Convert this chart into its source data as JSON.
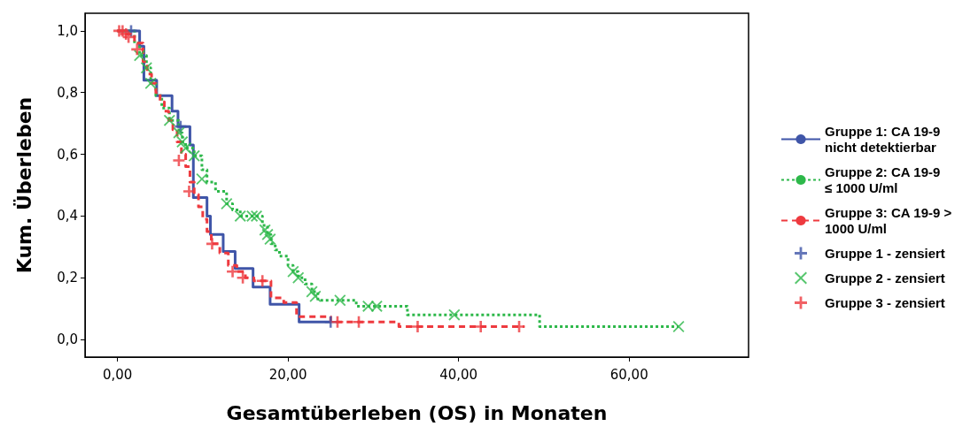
{
  "chart_data": {
    "type": "step",
    "xlabel": "Gesamtüberleben (OS) in Monaten",
    "ylabel": "Kum. Überleben",
    "xlim": [
      -3.8,
      74
    ],
    "ylim": [
      -0.057,
      1.057
    ],
    "xticks": [
      {
        "value": 0,
        "label": "0,00"
      },
      {
        "value": 20,
        "label": "20,00"
      },
      {
        "value": 40,
        "label": "40,00"
      },
      {
        "value": 60,
        "label": "60,00"
      }
    ],
    "yticks": [
      {
        "value": 0,
        "label": "0,0"
      },
      {
        "value": 0.2,
        "label": "0,2"
      },
      {
        "value": 0.4,
        "label": "0,4"
      },
      {
        "value": 0.6,
        "label": "0,6"
      },
      {
        "value": 0.8,
        "label": "0,8"
      },
      {
        "value": 1,
        "label": "1,0"
      }
    ],
    "grid": false,
    "legend": "right",
    "series": [
      {
        "name": "Gruppe 1: CA 19-9 nicht detektierbar",
        "line_style": "solid",
        "color": "#3f55a8",
        "x": [
          0,
          2.6,
          3.1,
          4.6,
          6.4,
          7.1,
          8.5,
          8.9,
          10.5,
          10.9,
          12.4,
          13.8,
          15.9,
          17.9,
          21.3,
          25
        ],
        "values": [
          1,
          0.95,
          0.84,
          0.79,
          0.74,
          0.69,
          0.63,
          0.46,
          0.4,
          0.34,
          0.285,
          0.23,
          0.17,
          0.114,
          0.057,
          0.057
        ]
      },
      {
        "name": "Gruppe 2: CA 19-9 ≤ 1000 U/ml",
        "line_style": "dotted",
        "color": "#2db84a",
        "x": [
          0,
          2,
          2.6,
          3.4,
          3.9,
          4.5,
          5.2,
          6.1,
          7.2,
          7.6,
          8,
          9,
          9.9,
          10.5,
          11.5,
          12.8,
          13.5,
          14.4,
          17,
          17.6,
          18,
          18.5,
          19,
          20,
          20.6,
          21.2,
          22,
          22.8,
          23.5,
          28,
          34,
          49.5,
          65.8
        ],
        "values": [
          1,
          0.96,
          0.92,
          0.88,
          0.83,
          0.79,
          0.75,
          0.71,
          0.67,
          0.64,
          0.62,
          0.595,
          0.55,
          0.51,
          0.48,
          0.44,
          0.42,
          0.4,
          0.37,
          0.34,
          0.31,
          0.29,
          0.27,
          0.24,
          0.22,
          0.2,
          0.18,
          0.155,
          0.127,
          0.108,
          0.08,
          0.042,
          0.042
        ]
      },
      {
        "name": "Gruppe 3: CA 19-9 > 1000 U/ml",
        "line_style": "dashed",
        "color": "#ee3a3f",
        "x": [
          0,
          1,
          2,
          3,
          3.5,
          4,
          4.5,
          5,
          5.5,
          6,
          6.5,
          7,
          7.5,
          8,
          8.5,
          9,
          9.5,
          10,
          10.5,
          11,
          12,
          13,
          14,
          15,
          16,
          18,
          19.5,
          21,
          25,
          33,
          47.7
        ],
        "values": [
          1,
          0.99,
          0.96,
          0.9,
          0.86,
          0.83,
          0.8,
          0.77,
          0.74,
          0.71,
          0.68,
          0.64,
          0.6,
          0.56,
          0.51,
          0.47,
          0.43,
          0.39,
          0.35,
          0.31,
          0.28,
          0.24,
          0.22,
          0.2,
          0.19,
          0.135,
          0.12,
          0.074,
          0.057,
          0.042,
          0.042
        ]
      },
      {
        "name": "Gruppe 1 - zensiert",
        "type": "scatter",
        "marker": "cross",
        "color": "#3f55a8",
        "x": [
          1.6,
          7.4,
          25
        ],
        "values": [
          1,
          0.69,
          0.057
        ]
      },
      {
        "name": "Gruppe 2 - zensiert",
        "type": "scatter",
        "marker": "x",
        "color": "#2db84a",
        "x": [
          2.6,
          3.4,
          3.9,
          6.1,
          7.2,
          7.6,
          8,
          9,
          9.9,
          12.8,
          14.4,
          15.8,
          16.3,
          17.3,
          17.6,
          17.9,
          20.6,
          21.2,
          22.8,
          23.2,
          26.1,
          29.4,
          30.4,
          39.5,
          65.8
        ],
        "values": [
          0.92,
          0.88,
          0.83,
          0.71,
          0.67,
          0.64,
          0.62,
          0.595,
          0.52,
          0.44,
          0.4,
          0.4,
          0.4,
          0.355,
          0.34,
          0.325,
          0.22,
          0.2,
          0.155,
          0.14,
          0.127,
          0.108,
          0.108,
          0.08,
          0.042
        ]
      },
      {
        "name": "Gruppe 3 - zensiert",
        "type": "scatter",
        "marker": "cross",
        "color": "#ee3a3f",
        "x": [
          0.2,
          0.6,
          1,
          1.3,
          2.3,
          7.2,
          8.4,
          11.1,
          13.5,
          14.7,
          17,
          25.8,
          28.3,
          35.2,
          42.6,
          47.1
        ],
        "values": [
          1,
          1,
          0.99,
          0.98,
          0.94,
          0.58,
          0.48,
          0.31,
          0.22,
          0.2,
          0.19,
          0.057,
          0.057,
          0.042,
          0.042,
          0.042
        ]
      }
    ]
  }
}
